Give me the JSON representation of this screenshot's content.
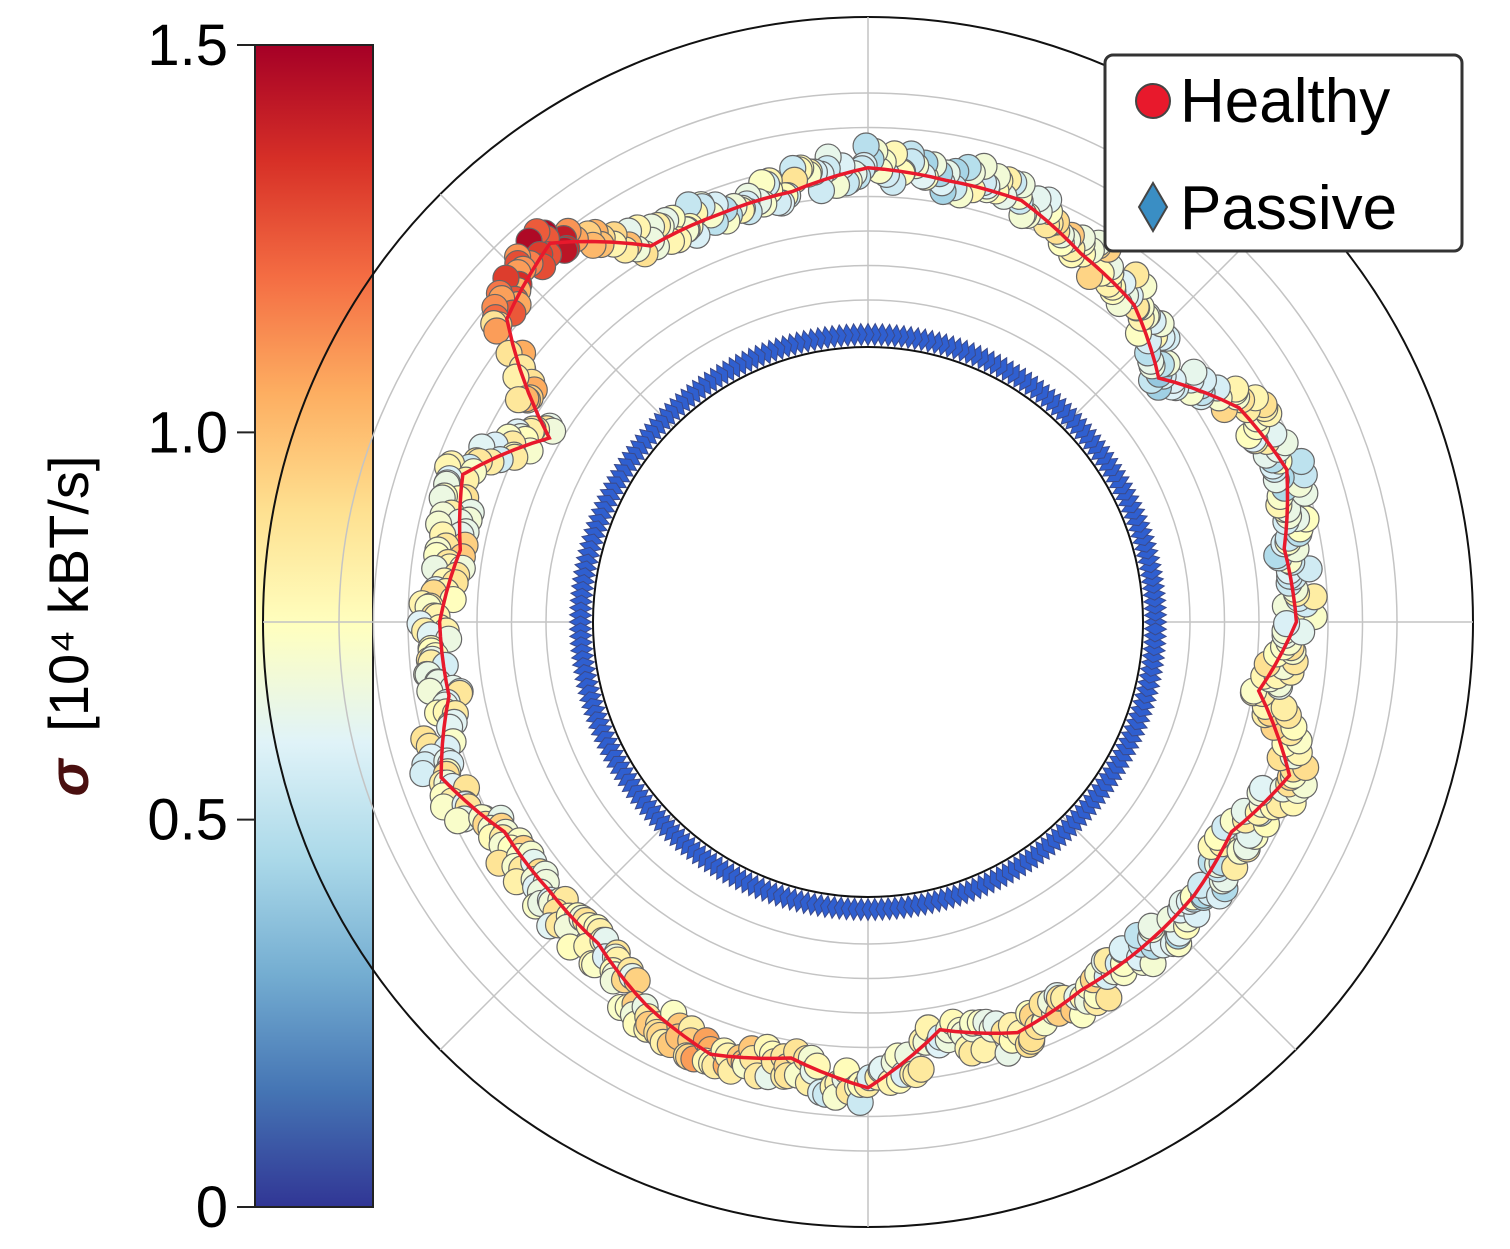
{
  "chart_data": {
    "type": "scatter",
    "coordinate_system": "polar",
    "grid": true,
    "legend_position": "top-right",
    "colorbar": {
      "label_symbol": "σ",
      "label_units": "[10⁴ kBT/s]",
      "range": [
        0,
        1.5
      ],
      "ticks": [
        "0",
        "0.5",
        "1.0",
        "1.5"
      ],
      "tick_values": [
        0,
        0.5,
        1.0,
        1.5
      ],
      "colormap": [
        "#313695",
        "#4575b4",
        "#74add1",
        "#abd9e9",
        "#e0f3f8",
        "#ffffbf",
        "#fee090",
        "#fdae61",
        "#f46d43",
        "#d73027",
        "#a50026"
      ]
    },
    "radial": {
      "rlim": [
        0,
        1.0
      ],
      "inner_circle_r": 0.48,
      "grid_r": [
        0.56,
        0.62,
        0.68,
        0.74,
        0.8,
        0.86,
        0.92
      ]
    },
    "series": [
      {
        "name": "Healthy",
        "marker": "circle",
        "legend_color": "#e8192c",
        "line_color": "#e8192c",
        "angle_deg": [
          0,
          10,
          20,
          30,
          40,
          50,
          60,
          70,
          80,
          90,
          100,
          110,
          120,
          130,
          140,
          150,
          160,
          170,
          180,
          190,
          200,
          210,
          220,
          230,
          240,
          250,
          260,
          270,
          280,
          290,
          300,
          310,
          320,
          330,
          340,
          350
        ],
        "r": [
          0.745,
          0.735,
          0.775,
          0.745,
          0.66,
          0.72,
          0.74,
          0.78,
          0.78,
          0.79,
          0.76,
          0.755,
          0.755,
          0.86,
          0.82,
          0.64,
          0.75,
          0.72,
          0.745,
          0.74,
          0.79,
          0.73,
          0.725,
          0.73,
          0.77,
          0.8,
          0.77,
          0.81,
          0.72,
          0.76,
          0.74,
          0.74,
          0.74,
          0.73,
          0.78,
          0.69
        ],
        "sigma": [
          0.7,
          0.62,
          0.62,
          0.78,
          0.55,
          0.72,
          0.85,
          0.7,
          0.6,
          0.62,
          0.72,
          0.6,
          0.7,
          1.35,
          1.1,
          0.75,
          0.72,
          0.8,
          0.75,
          0.7,
          0.75,
          0.8,
          0.72,
          0.75,
          0.8,
          0.95,
          0.75,
          0.68,
          0.7,
          0.78,
          0.8,
          0.62,
          0.58,
          0.72,
          0.8,
          0.78
        ]
      },
      {
        "name": "Passive",
        "marker": "diamond",
        "legend_color": "#3a8ec4",
        "ring_color": "#2f5fd0",
        "r_mean": 0.5,
        "sigma_approx": 0.03
      }
    ]
  }
}
